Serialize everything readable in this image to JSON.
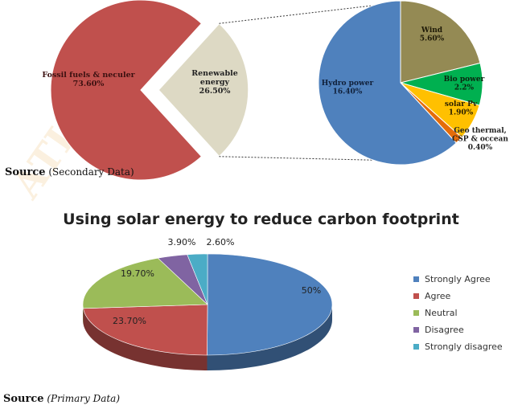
{
  "chart_data": [
    {
      "type": "pie",
      "categories": [
        "Fossil fuels & neculer",
        "Renewable energy"
      ],
      "values": [
        73.6,
        26.5
      ],
      "labels": [
        "Fossil fuels & neculer\n73.60%",
        "Renewable\nenergy\n26.50%"
      ],
      "colors": [
        "#c0504d",
        "#ddd9c4"
      ],
      "title": "",
      "exploded": "Renewable energy"
    },
    {
      "type": "pie",
      "categories": [
        "Hydro power",
        "Wind",
        "Bio power",
        "solar Pv",
        "Geo thermal, CSP & occean"
      ],
      "values": [
        16.4,
        5.6,
        2.2,
        1.9,
        0.4
      ],
      "labels": [
        "Hydro power\n16.40%",
        "Wind\n5.60%",
        "Bio power\n2.2%",
        "solar Pv\n1.90%",
        "Geo thermal,\nCSP & occean\n0.40%"
      ],
      "colors": [
        "#4f81bd",
        "#948a54",
        "#00b050",
        "#ffc000",
        "#e46c0a"
      ],
      "title": ""
    },
    {
      "type": "pie",
      "style": "3d",
      "title": "Using solar energy  to reduce carbon footprint",
      "categories": [
        "Strongly Agree",
        "Agree",
        "Neutral",
        "Disagree",
        "Strongly disagree"
      ],
      "values": [
        50,
        23.7,
        19.7,
        3.9,
        2.6
      ],
      "labels": [
        "50%",
        "23.70%",
        "19.70%",
        "3.90%",
        "2.60%"
      ],
      "colors": [
        "#4f81bd",
        "#c0504d",
        "#9bbb59",
        "#8064a2",
        "#4bacc6"
      ],
      "legend": "right"
    }
  ],
  "sources": {
    "top": {
      "label": "Source",
      "detail": "(Secondary Data)"
    },
    "bottom": {
      "label": "Source",
      "detail": "(Primary Data)"
    }
  }
}
